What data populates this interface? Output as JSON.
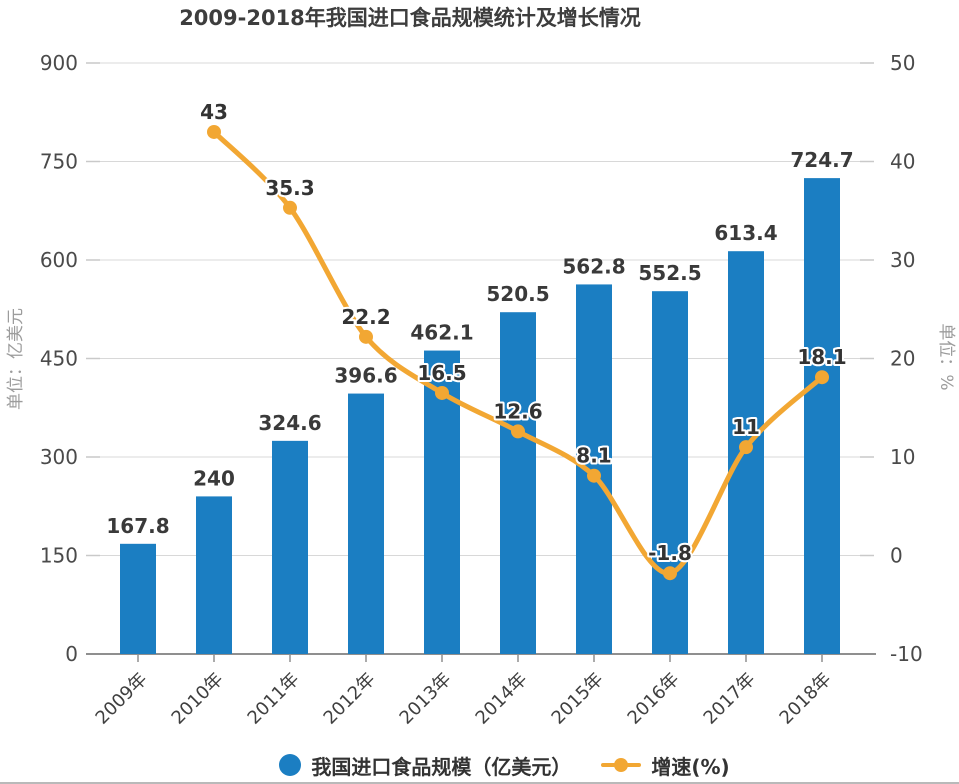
{
  "chart_data": {
    "type": "bar+line",
    "title": "2009-2018年我国进口食品规模统计及增长情况",
    "categories": [
      "2009年",
      "2010年",
      "2011年",
      "2012年",
      "2013年",
      "2014年",
      "2015年",
      "2016年",
      "2017年",
      "2018年"
    ],
    "series": [
      {
        "name": "我国进口食品规模（亿美元）",
        "type": "bar",
        "y_axis": "left",
        "color": "#1B7EC2",
        "values": [
          167.8,
          240,
          324.6,
          396.6,
          462.1,
          520.5,
          562.8,
          552.5,
          613.4,
          724.7
        ]
      },
      {
        "name": "增速(%)",
        "type": "line",
        "y_axis": "right",
        "color": "#F2A733",
        "values": [
          null,
          43,
          35.3,
          22.2,
          16.5,
          12.6,
          8.1,
          -1.8,
          11,
          18.1
        ]
      }
    ],
    "y_axis_left": {
      "name": "单位：亿美元",
      "min": 0,
      "max": 900,
      "step": 150,
      "ticks": [
        900,
        750,
        600,
        450,
        300,
        150,
        0
      ]
    },
    "y_axis_right": {
      "name": "单位：%",
      "min": -10,
      "max": 50,
      "step": 10,
      "ticks": [
        50,
        40,
        30,
        20,
        10,
        0,
        -10
      ]
    },
    "grid": true,
    "legend_position": "bottom"
  },
  "colors": {
    "bar": "#1B7EC2",
    "line": "#F2A733",
    "grid": "#D8D8D8",
    "axis_line": "#8F8F8F",
    "side_tick": "#C9C9C9",
    "value_label": "#3A3A3A",
    "axis_text": "#4A4A4A",
    "axis_name": "#9C9C9C",
    "legend_text": "#333333"
  }
}
